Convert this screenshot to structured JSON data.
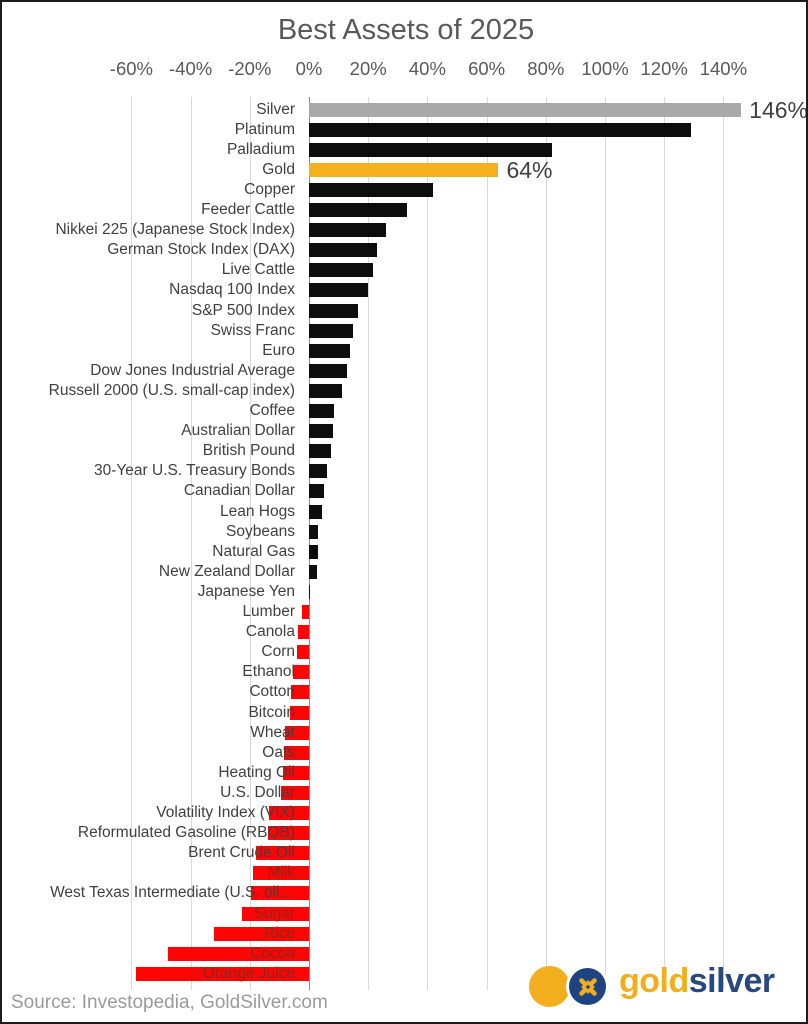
{
  "title": "Best Assets of 2025",
  "source_note": "Source: Investopedia, GoldSilver.com",
  "logo": {
    "gold_text": "gold",
    "silver_text": "silver",
    "coin_icon": "goldsilver-coin-icon"
  },
  "colors": {
    "title_gray": "#595959",
    "label_gray": "#404040",
    "grid_gray": "#d9d9d9",
    "bar_silver": "#A9A9A9",
    "bar_gold": "#F5B01B",
    "bar_black": "#0D0D0D",
    "bar_red": "#FE0404",
    "in_bar_label": "#8e261c",
    "logo_gold": "#F2AE1C",
    "logo_blue": "#1D4480"
  },
  "chart_data": {
    "type": "bar",
    "orientation": "horizontal",
    "title": "Best Assets of 2025",
    "xlabel": "",
    "ylabel": "",
    "xlim": [
      -70,
      150
    ],
    "x_ticks": [
      -60,
      -40,
      -20,
      0,
      20,
      40,
      60,
      80,
      100,
      120,
      140
    ],
    "x_tick_labels": [
      "-60%",
      "-40%",
      "-20%",
      "0%",
      "20%",
      "40%",
      "60%",
      "80%",
      "100%",
      "120%",
      "140%"
    ],
    "grid": true,
    "legend": false,
    "value_unit": "percent",
    "bars": [
      {
        "label": "Silver",
        "value": 146,
        "color": "silver",
        "value_label": "146%"
      },
      {
        "label": "Platinum",
        "value": 129,
        "color": "black"
      },
      {
        "label": "Palladium",
        "value": 82,
        "color": "black"
      },
      {
        "label": "Gold",
        "value": 64,
        "color": "gold",
        "value_label": "64%"
      },
      {
        "label": "Copper",
        "value": 42,
        "color": "black"
      },
      {
        "label": "Feeder Cattle",
        "value": 33,
        "color": "black"
      },
      {
        "label": "Nikkei 225 (Japanese Stock Index)",
        "value": 26,
        "color": "black"
      },
      {
        "label": "German Stock Index (DAX)",
        "value": 23,
        "color": "black"
      },
      {
        "label": "Live Cattle",
        "value": 21.5,
        "color": "black"
      },
      {
        "label": "Nasdaq 100 Index",
        "value": 20,
        "color": "black"
      },
      {
        "label": "S&P 500 Index",
        "value": 16.5,
        "color": "black"
      },
      {
        "label": "Swiss Franc",
        "value": 15,
        "color": "black"
      },
      {
        "label": "Euro",
        "value": 14,
        "color": "black"
      },
      {
        "label": "Dow Jones Industrial Average",
        "value": 13,
        "color": "black"
      },
      {
        "label": "Russell 2000 (U.S. small-cap index)",
        "value": 11,
        "color": "black"
      },
      {
        "label": "Coffee",
        "value": 8.5,
        "color": "black"
      },
      {
        "label": "Australian Dollar",
        "value": 8,
        "color": "black"
      },
      {
        "label": "British Pound",
        "value": 7.5,
        "color": "black"
      },
      {
        "label": "30-Year U.S. Treasury Bonds",
        "value": 6,
        "color": "black"
      },
      {
        "label": "Canadian Dollar",
        "value": 5,
        "color": "black"
      },
      {
        "label": "Lean Hogs",
        "value": 4.5,
        "color": "black"
      },
      {
        "label": "Soybeans",
        "value": 3.2,
        "color": "black"
      },
      {
        "label": "Natural Gas",
        "value": 3,
        "color": "black"
      },
      {
        "label": "New Zealand Dollar",
        "value": 2.8,
        "color": "black"
      },
      {
        "label": "Japanese Yen",
        "value": 0.2,
        "color": "black"
      },
      {
        "label": "Lumber",
        "value": -2.5,
        "color": "red"
      },
      {
        "label": "Canola",
        "value": -3.6,
        "color": "red"
      },
      {
        "label": "Corn",
        "value": -4,
        "color": "red"
      },
      {
        "label": "Ethanol",
        "value": -5.5,
        "color": "red"
      },
      {
        "label": "Cotton",
        "value": -6,
        "color": "red"
      },
      {
        "label": "Bitcoin",
        "value": -6.3,
        "color": "red"
      },
      {
        "label": "Wheat",
        "value": -8,
        "color": "red"
      },
      {
        "label": "Oats",
        "value": -8.5,
        "color": "red"
      },
      {
        "label": "Heating Oil",
        "value": -8.8,
        "color": "red"
      },
      {
        "label": "U.S. Dollar",
        "value": -9.3,
        "color": "red"
      },
      {
        "label": "Volatility Index (VIX)",
        "value": -13.5,
        "color": "red"
      },
      {
        "label": "Reformulated Gasoline (RBOB)",
        "value": -14,
        "color": "red"
      },
      {
        "label": "Brent Crude Oil",
        "value": -18,
        "color": "red"
      },
      {
        "label": "Milk",
        "value": -18.8,
        "color": "red",
        "label_in_bar": true
      },
      {
        "label": "West Texas Intermediate (U.S. oil…",
        "value": -19.6,
        "color": "red"
      },
      {
        "label": "Sugar",
        "value": -22.5,
        "color": "red",
        "label_in_bar": true
      },
      {
        "label": "Rice",
        "value": -32,
        "color": "red",
        "label_in_bar": true
      },
      {
        "label": "Cocoa",
        "value": -47.5,
        "color": "red",
        "label_in_bar": true
      },
      {
        "label": "Orange Juice",
        "value": -58.5,
        "color": "red",
        "label_in_bar": true
      }
    ]
  }
}
